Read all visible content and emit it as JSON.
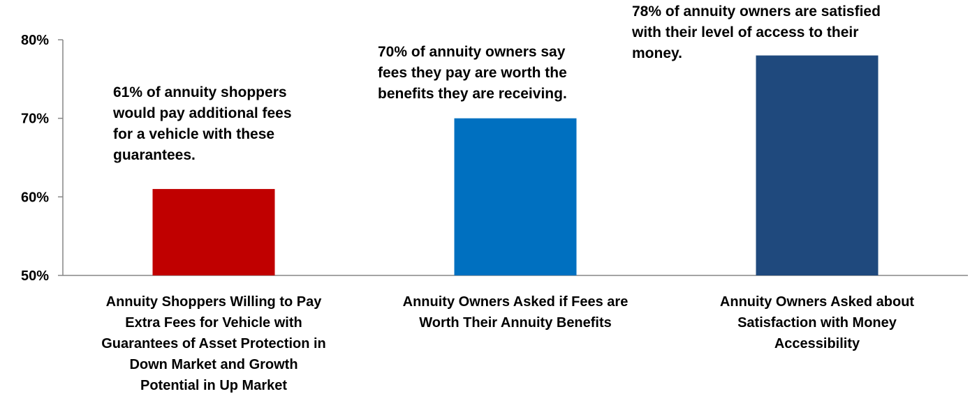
{
  "chart_data": {
    "type": "bar",
    "categories": [
      "Annuity Shoppers Willing to Pay\nExtra Fees for Vehicle with\nGuarantees of Asset Protection in\nDown Market and Growth\nPotential in Up Market",
      "Annuity Owners Asked if Fees are\nWorth Their Annuity Benefits",
      "Annuity Owners Asked about\nSatisfaction with Money\nAccessibility"
    ],
    "values": [
      61,
      70,
      78
    ],
    "colors": [
      "#c00000",
      "#0070c0",
      "#1f497d"
    ],
    "ylim": [
      50,
      80
    ],
    "yticks": [
      50,
      60,
      70,
      80
    ],
    "ytick_labels": [
      "50%",
      "60%",
      "70%",
      "80%"
    ],
    "grid": false,
    "annotations": [
      "61% of annuity shoppers\nwould pay additional fees\nfor a vehicle with these\nguarantees.",
      "70% of annuity owners say\nfees they pay are worth the\nbenefits they are receiving.",
      "78% of annuity owners are satisfied\nwith their level of access to their\nmoney."
    ]
  }
}
